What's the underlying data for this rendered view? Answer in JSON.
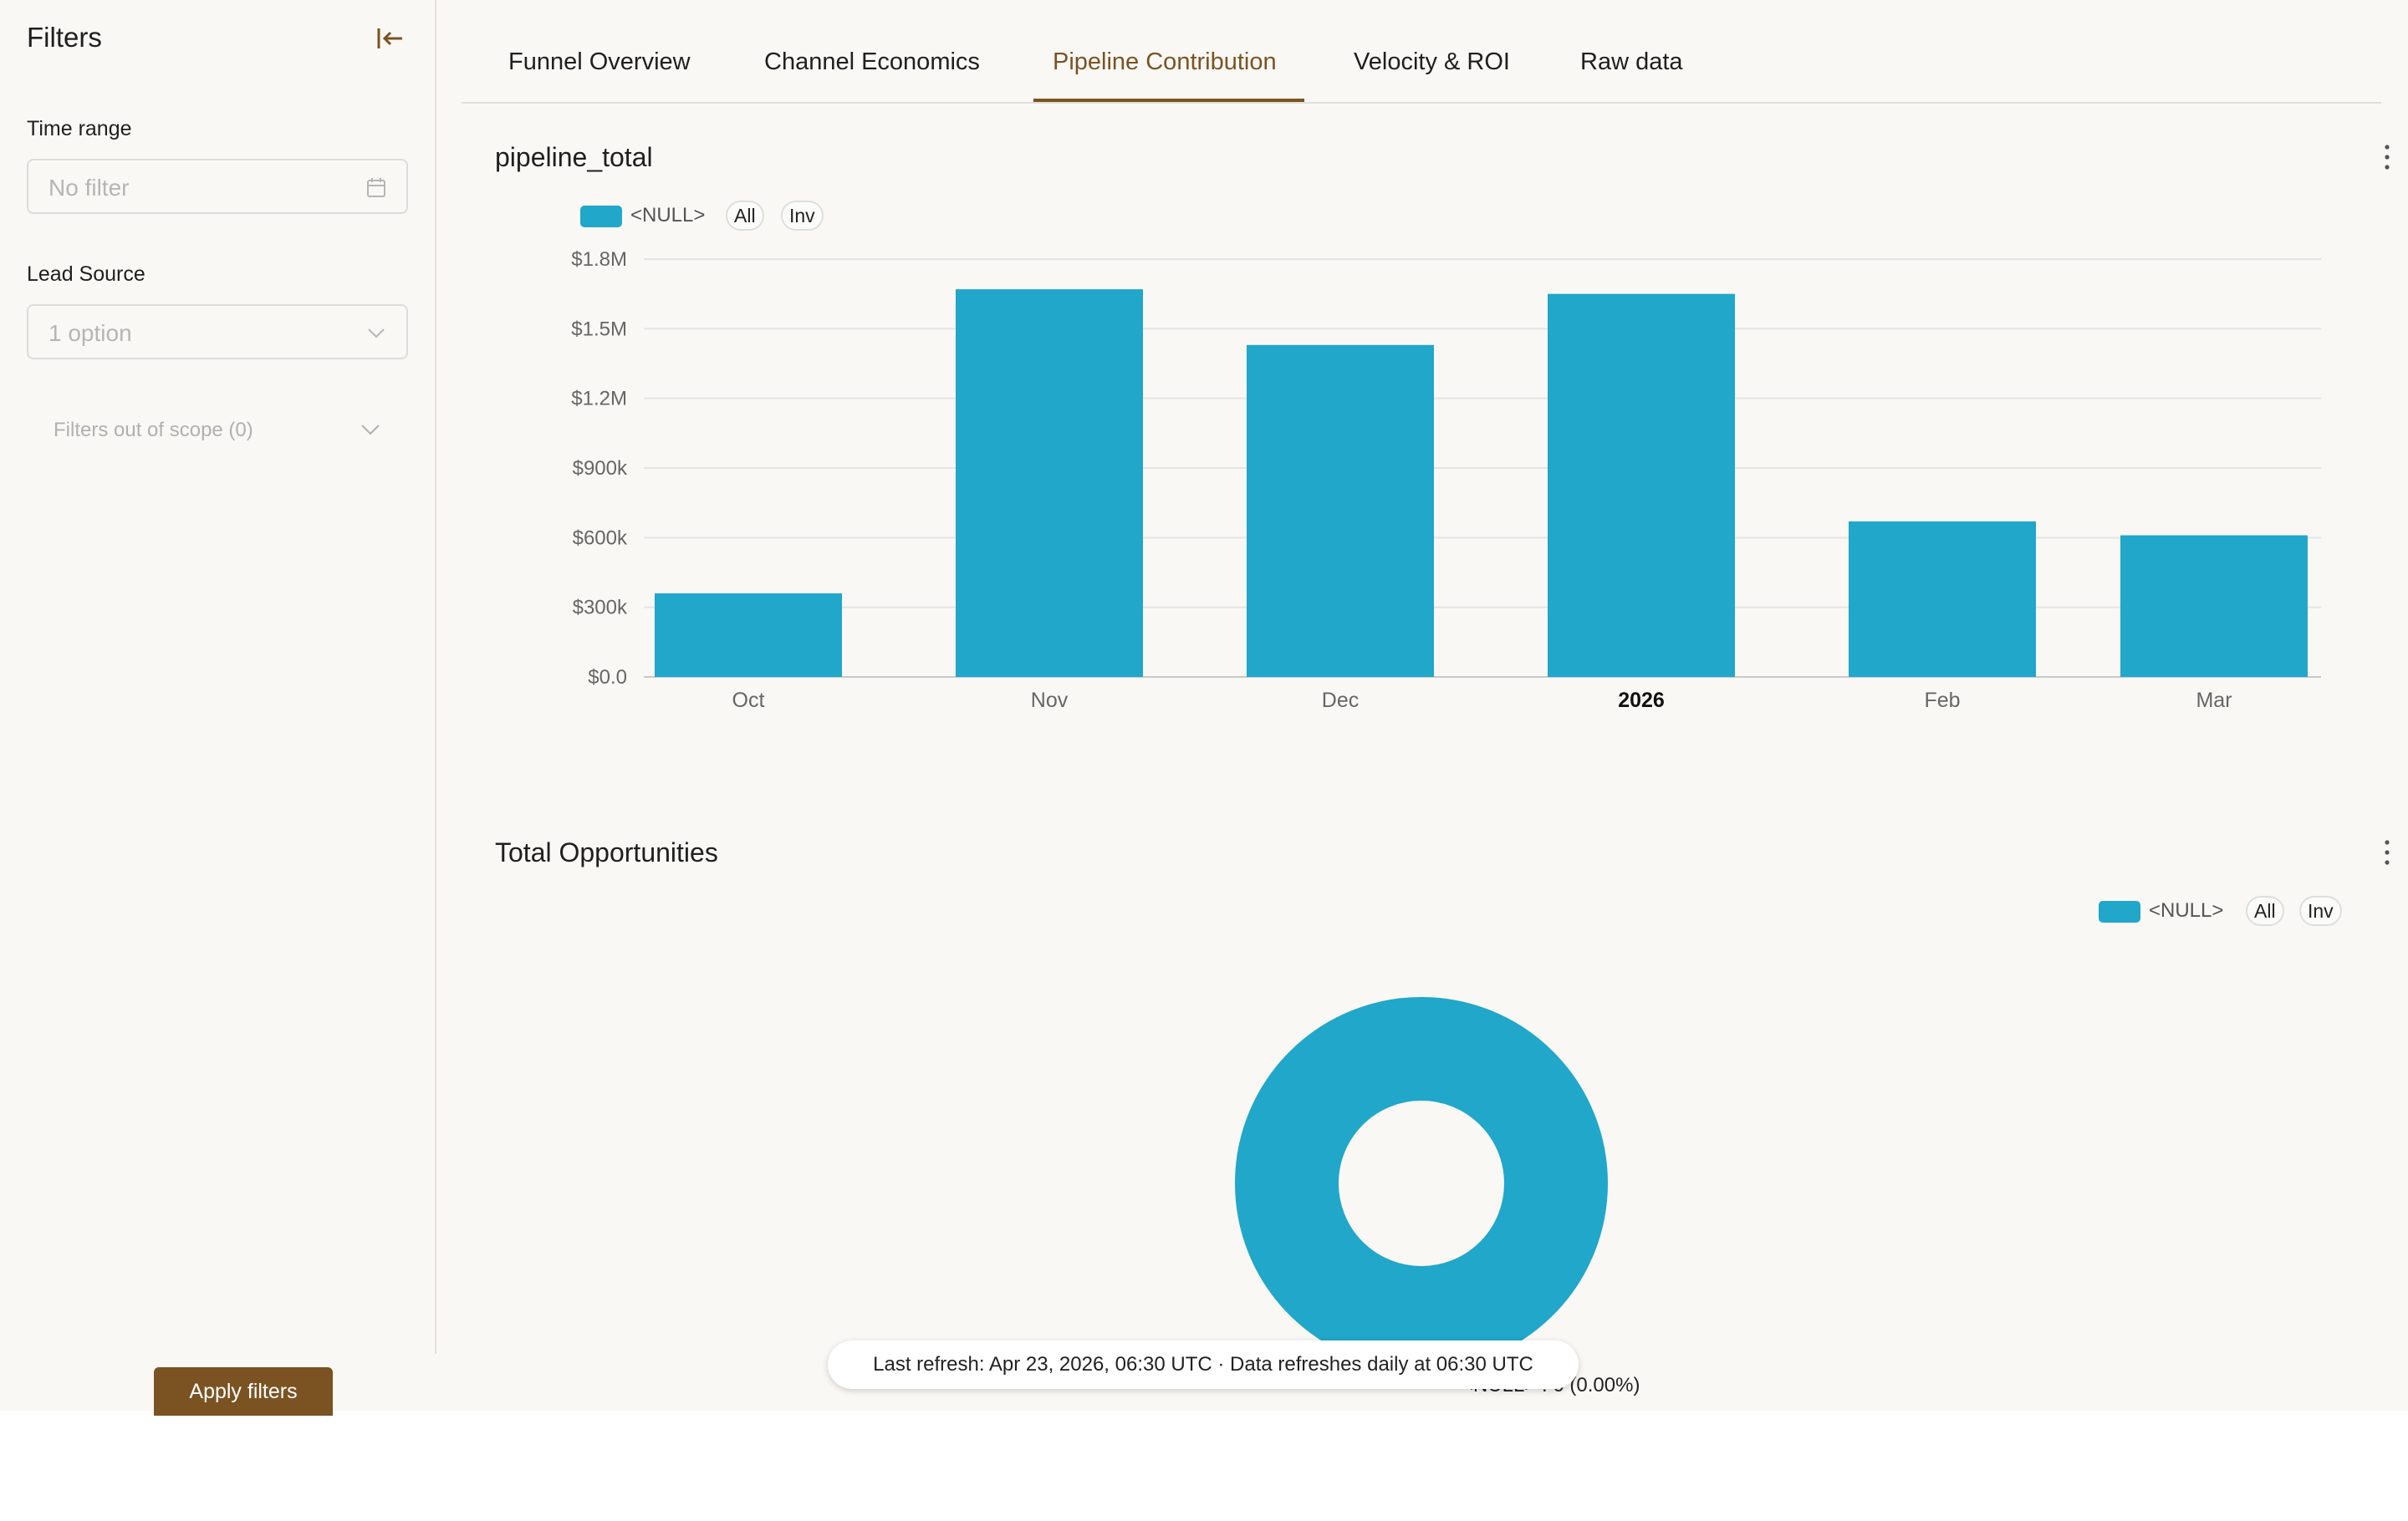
{
  "sidebar": {
    "title": "Filters",
    "time_range": {
      "label": "Time range",
      "placeholder": "No filter"
    },
    "lead_source": {
      "label": "Lead Source",
      "placeholder": "1 option"
    },
    "out_of_scope": "Filters out of scope (0)",
    "apply_button": "Apply filters"
  },
  "tabs": [
    {
      "label": "Funnel Overview",
      "active": false
    },
    {
      "label": "Channel Economics",
      "active": false
    },
    {
      "label": "Pipeline Contribution",
      "active": true
    },
    {
      "label": "Velocity & ROI",
      "active": false
    },
    {
      "label": "Raw data",
      "active": false
    }
  ],
  "panel1": {
    "title": "pipeline_total",
    "legend": {
      "label": "<NULL>",
      "all": "All",
      "inv": "Inv"
    }
  },
  "panel2": {
    "title": "Total Opportunities",
    "legend": {
      "label": "<NULL>",
      "all": "All",
      "inv": "Inv"
    },
    "donut_label": "<NULL> : 0 (0.00%)"
  },
  "refresh_text": "Last refresh: Apr 23, 2026, 06:30 UTC · Data refreshes daily at 06:30 UTC",
  "colors": {
    "accent": "#7b5323",
    "series": "#20a7c9"
  },
  "icons": {
    "collapse": "collapse-left-icon",
    "calendar": "calendar-icon",
    "chevron": "chevron-down-icon",
    "kebab": "kebab-menu-icon"
  },
  "chart_data": [
    {
      "type": "bar",
      "title": "pipeline_total",
      "categories": [
        "Oct",
        "Nov",
        "Dec",
        "2026",
        "Feb",
        "Mar"
      ],
      "bold_categories": [
        "2026"
      ],
      "series": [
        {
          "name": "<NULL>",
          "values": [
            360000,
            1670000,
            1430000,
            1650000,
            670000,
            610000
          ]
        }
      ],
      "ylim": [
        0,
        1800000
      ],
      "yticks": [
        0,
        300000,
        600000,
        900000,
        1200000,
        1500000,
        1800000
      ],
      "ytick_labels": [
        "$0.0",
        "$300k",
        "$600k",
        "$900k",
        "$1.2M",
        "$1.5M",
        "$1.8M"
      ],
      "grid": true,
      "legend": "top-left"
    },
    {
      "type": "pie",
      "title": "Total Opportunities",
      "slices": [
        {
          "name": "<NULL>",
          "value": 0,
          "percent": "0.00%"
        }
      ],
      "donut": true,
      "legend": "top-right"
    }
  ]
}
